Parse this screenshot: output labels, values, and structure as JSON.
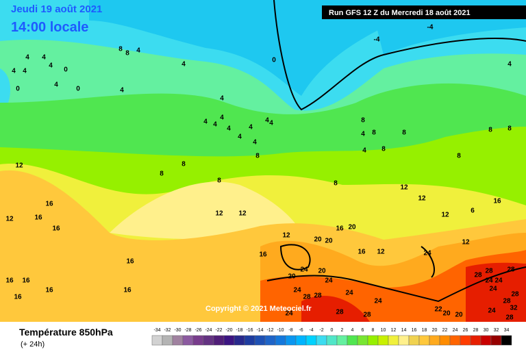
{
  "header": {
    "date": "Jeudi 19 août 2021",
    "time": "14:00 locale",
    "run": "Run GFS 12 Z du Mercredi 18 août 2021"
  },
  "copyright": "Copyright © 2021 Meteociel.fr",
  "legend": {
    "title": "Température 850hPa",
    "subtitle": "(+ 24h)",
    "values": [
      -34,
      -32,
      -30,
      -28,
      -26,
      -24,
      -22,
      -20,
      -18,
      -16,
      -14,
      -12,
      -10,
      -8,
      -6,
      -4,
      -2,
      0,
      2,
      4,
      6,
      8,
      10,
      12,
      14,
      16,
      18,
      20,
      22,
      24,
      26,
      28,
      30,
      32,
      34
    ],
    "colors": [
      "#d2d2d2",
      "#b4b4b4",
      "#a082a0",
      "#8c5aa0",
      "#783c8c",
      "#643282",
      "#501e78",
      "#3c1482",
      "#28288c",
      "#1e3ca0",
      "#1e50b4",
      "#1e64c8",
      "#1478dc",
      "#0a96f0",
      "#00b4ff",
      "#00d2ff",
      "#3cdcf0",
      "#50e6c8",
      "#64f0a0",
      "#50e650",
      "#78e632",
      "#96f000",
      "#c8f000",
      "#f0f03c",
      "#fff08c",
      "#f0d250",
      "#ffc83c",
      "#ffaa1e",
      "#ff8c00",
      "#ff6400",
      "#ff3c00",
      "#e61e00",
      "#c80000",
      "#960000",
      "#000000"
    ]
  },
  "contour_labels": [
    4,
    4,
    4,
    0,
    4,
    4,
    0,
    4,
    0,
    8,
    8,
    4,
    4,
    4,
    4,
    4,
    4,
    4,
    4,
    4,
    4,
    4,
    4,
    4,
    8,
    8,
    8,
    8,
    0,
    -4,
    -4,
    4,
    8,
    4,
    8,
    4,
    8,
    8,
    8,
    8,
    8,
    8,
    12,
    12,
    12,
    6,
    16,
    12,
    16,
    12,
    16,
    16,
    12,
    12,
    16,
    16,
    16,
    20,
    12,
    20,
    20,
    16,
    12,
    24,
    24,
    20,
    20,
    24,
    24,
    28,
    28,
    24,
    24,
    12,
    28,
    28,
    28,
    24,
    24,
    24,
    28,
    28,
    32,
    24,
    28,
    22,
    20,
    20,
    28,
    24,
    16,
    16,
    16,
    16,
    16,
    28
  ]
}
